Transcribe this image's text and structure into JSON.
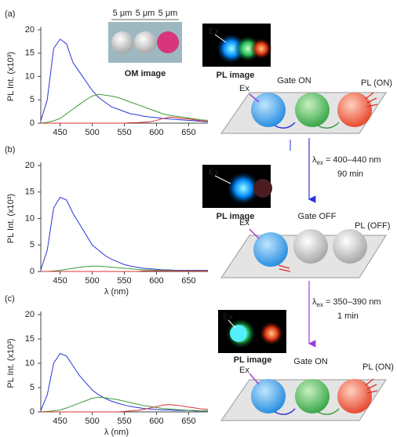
{
  "chart_data": [
    {
      "type": "line",
      "panel": "(a)",
      "ylabel": "PL Int. (x10³)",
      "x": [
        420,
        430,
        440,
        450,
        460,
        470,
        480,
        490,
        500,
        510,
        520,
        530,
        540,
        550,
        560,
        570,
        580,
        590,
        600,
        610,
        620,
        630,
        640,
        650,
        660,
        670,
        680
      ],
      "xlim": [
        420,
        680
      ],
      "xticks": [
        450,
        500,
        550,
        600,
        650
      ],
      "ylim": [
        0,
        20
      ],
      "yticks": [
        0,
        5,
        10,
        15,
        20
      ],
      "series": [
        {
          "color": "#2b35d8",
          "values": [
            0.5,
            5,
            16,
            18,
            17,
            13,
            11,
            9,
            7,
            5.5,
            4.5,
            3.5,
            3,
            2.5,
            2,
            1.8,
            1.5,
            1.3,
            1.2,
            1,
            0.9,
            0.8,
            0.7,
            0.6,
            0.5,
            0.4,
            0.3
          ]
        },
        {
          "color": "#3a9a3a",
          "values": [
            0,
            0.2,
            0.5,
            1,
            2,
            3,
            4,
            5,
            5.8,
            6.2,
            6,
            5.8,
            5.5,
            5,
            4.5,
            4,
            3.5,
            3,
            2.5,
            2,
            1.7,
            1.5,
            1.3,
            1.1,
            0.9,
            0.7,
            0.6
          ]
        },
        {
          "color": "#d83030",
          "values": [
            0,
            0,
            0,
            0,
            0,
            0,
            0,
            0,
            0,
            0,
            0,
            0,
            0,
            0,
            0.1,
            0.1,
            0.2,
            0.3,
            0.6,
            1,
            1.3,
            1.2,
            1,
            0.9,
            0.7,
            0.5,
            0.4
          ]
        }
      ]
    },
    {
      "type": "line",
      "panel": "(b)",
      "ylabel": "PL Int. (x10³)",
      "xlabel": "λ (nm)",
      "x": [
        420,
        430,
        440,
        450,
        460,
        470,
        480,
        490,
        500,
        510,
        520,
        530,
        540,
        550,
        560,
        570,
        580,
        590,
        600,
        610,
        620,
        630,
        640,
        650,
        660,
        670,
        680
      ],
      "xlim": [
        420,
        680
      ],
      "xticks": [
        450,
        500,
        550,
        600,
        650
      ],
      "ylim": [
        0,
        20
      ],
      "yticks": [
        0,
        5,
        10,
        15,
        20
      ],
      "series": [
        {
          "color": "#2b35d8",
          "values": [
            0.3,
            4,
            12,
            14,
            13.5,
            11,
            9,
            7,
            5,
            4,
            3,
            2.3,
            1.8,
            1.3,
            1,
            0.8,
            0.6,
            0.5,
            0.4,
            0.3,
            0.3,
            0.2,
            0.2,
            0.2,
            0.2,
            0.2,
            0.2
          ]
        },
        {
          "color": "#3a9a3a",
          "values": [
            0,
            0,
            0.1,
            0.2,
            0.4,
            0.6,
            0.8,
            0.9,
            1,
            1,
            0.9,
            0.8,
            0.7,
            0.6,
            0.5,
            0.4,
            0.3,
            0.3,
            0.2,
            0.2,
            0.2,
            0.1,
            0.1,
            0.1,
            0.1,
            0.1,
            0.1
          ]
        },
        {
          "color": "#d83030",
          "values": [
            0,
            0,
            0,
            0,
            0,
            0,
            0,
            0,
            0,
            0,
            0,
            0,
            0,
            0,
            0,
            0,
            0.1,
            0.1,
            0.1,
            0.1,
            0.1,
            0.1,
            0.1,
            0.1,
            0.1,
            0.1,
            0.1
          ]
        }
      ]
    },
    {
      "type": "line",
      "panel": "(c)",
      "ylabel": "PL Int. (x10³)",
      "xlabel": "λ (nm)",
      "x": [
        420,
        430,
        440,
        450,
        460,
        470,
        480,
        490,
        500,
        510,
        520,
        530,
        540,
        550,
        560,
        570,
        580,
        590,
        600,
        610,
        620,
        630,
        640,
        650,
        660,
        670,
        680
      ],
      "xlim": [
        420,
        680
      ],
      "xticks": [
        450,
        500,
        550,
        600,
        650
      ],
      "ylim": [
        0,
        20
      ],
      "yticks": [
        0,
        5,
        10,
        15,
        20
      ],
      "series": [
        {
          "color": "#2b35d8",
          "values": [
            0.3,
            3.5,
            10,
            12,
            11.5,
            9.5,
            7.5,
            6,
            4.5,
            3.5,
            2.8,
            2.2,
            1.8,
            1.4,
            1.1,
            0.9,
            0.7,
            0.6,
            0.5,
            0.4,
            0.4,
            0.3,
            0.3,
            0.3,
            0.2,
            0.2,
            0.2
          ]
        },
        {
          "color": "#3a9a3a",
          "values": [
            0,
            0.1,
            0.2,
            0.4,
            0.8,
            1.3,
            1.8,
            2.3,
            2.8,
            3,
            2.9,
            2.7,
            2.5,
            2.2,
            1.9,
            1.6,
            1.3,
            1.1,
            0.9,
            0.7,
            0.6,
            0.5,
            0.4,
            0.3,
            0.3,
            0.2,
            0.2
          ]
        },
        {
          "color": "#d83030",
          "values": [
            0,
            0,
            0,
            0,
            0,
            0,
            0,
            0,
            0,
            0,
            0,
            0,
            0,
            0.1,
            0.2,
            0.3,
            0.5,
            0.8,
            1.1,
            1.4,
            1.5,
            1.4,
            1.2,
            1,
            0.8,
            0.6,
            0.5
          ]
        }
      ]
    }
  ],
  "diagram": {
    "om_image": {
      "scale_labels": [
        "5 μm",
        "5 μm",
        "5 μm"
      ],
      "caption": "OM image"
    },
    "panels": [
      {
        "pl_image_caption": "PL image",
        "ex_image": "Ex",
        "ex_plane": "Ex",
        "gate": "Gate ON",
        "output": "PL (ON)"
      },
      {
        "pl_image_caption": "PL image",
        "ex_image": "Ex",
        "ex_plane": "Ex",
        "gate": "Gate OFF",
        "output": "PL (OFF)"
      },
      {
        "pl_image_caption": "PL image",
        "ex_image": "Ex",
        "ex_plane": "Ex",
        "gate": "Gate ON",
        "output": "PL (ON)"
      }
    ],
    "steps": [
      {
        "symbol": "λ",
        "sub": "ex",
        "range": "= 400–440 nm",
        "time": "90 min"
      },
      {
        "symbol": "λ",
        "sub": "ex",
        "range": "= 350–390 nm",
        "time": "1 min"
      }
    ]
  }
}
